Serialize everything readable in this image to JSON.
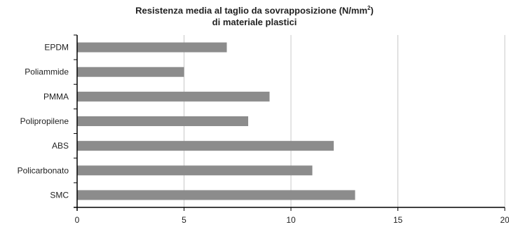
{
  "chart_data": {
    "type": "bar",
    "orientation": "horizontal",
    "title_line1_main": "Resistenza media al taglio da sovrapposizione (N/mm",
    "title_line1_sup": "2",
    "title_line1_end": ")",
    "title_line2": "di materiale plastici",
    "categories": [
      "EPDM",
      "Poliammide",
      "PMMA",
      "Polipropilene",
      "ABS",
      "Policarbonato",
      "SMC"
    ],
    "values": [
      7,
      5,
      9,
      8,
      12,
      11,
      13
    ],
    "xlim": [
      0,
      20
    ],
    "xticks": [
      0,
      5,
      10,
      15,
      20
    ],
    "grid": "vertical",
    "bar_color": "#8c8c8c",
    "grid_color": "#c8c8c8"
  }
}
